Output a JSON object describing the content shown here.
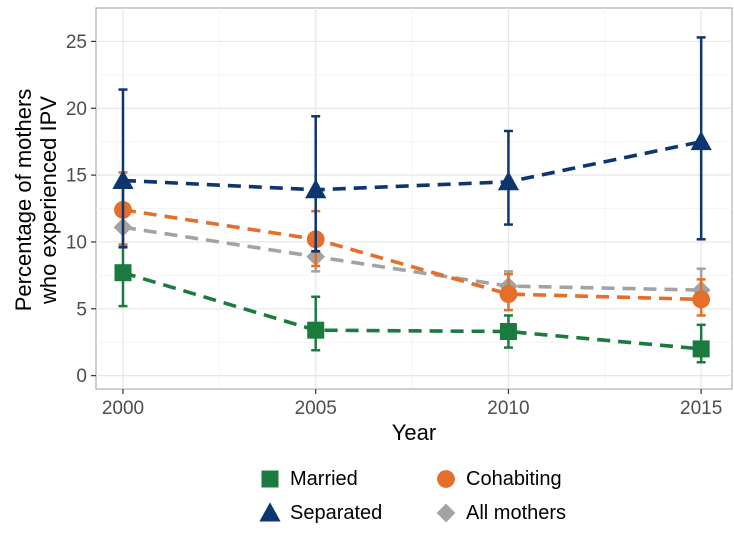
{
  "chart_data": {
    "type": "line",
    "xlabel": "Year",
    "ylabel_lines": [
      "Percentage of mothers",
      "who experienced IPV"
    ],
    "x": [
      2000,
      2005,
      2010,
      2015
    ],
    "x_ticks": [
      "2000",
      "2005",
      "2010",
      "2015"
    ],
    "y_ticks": [
      "0",
      "5",
      "10",
      "15",
      "20",
      "25"
    ],
    "xlim": [
      1999.3,
      2015.8
    ],
    "ylim": [
      -1,
      27.5
    ],
    "grid": true,
    "error_bars": true,
    "legend_position": "bottom",
    "series": [
      {
        "name": "Married",
        "color": "#1b7a3e",
        "marker": "square",
        "values": [
          7.7,
          3.4,
          3.3,
          2.0
        ],
        "lower": [
          5.2,
          1.9,
          2.1,
          1.0
        ],
        "upper": [
          9.8,
          5.9,
          4.5,
          3.8
        ]
      },
      {
        "name": "Cohabiting",
        "color": "#e36f2a",
        "marker": "circle",
        "values": [
          12.4,
          10.2,
          6.1,
          5.7
        ],
        "lower": [
          9.8,
          8.2,
          4.9,
          4.5
        ],
        "upper": [
          15.2,
          12.3,
          7.6,
          7.2
        ]
      },
      {
        "name": "Separated",
        "color": "#0d3570",
        "marker": "triangle",
        "values": [
          14.6,
          13.9,
          14.5,
          17.5
        ],
        "lower": [
          9.6,
          9.3,
          11.3,
          10.2
        ],
        "upper": [
          21.4,
          19.4,
          18.3,
          25.3
        ]
      },
      {
        "name": "All mothers",
        "color": "#a3a3a3",
        "marker": "diamond",
        "values": [
          11.1,
          8.9,
          6.7,
          6.4
        ],
        "lower": [
          9.6,
          7.8,
          5.9,
          5.3
        ],
        "upper": [
          12.6,
          9.9,
          7.8,
          8.0
        ]
      }
    ],
    "legend": {
      "rows": [
        [
          "Married",
          "Cohabiting"
        ],
        [
          "Separated",
          "All mothers"
        ]
      ]
    }
  }
}
